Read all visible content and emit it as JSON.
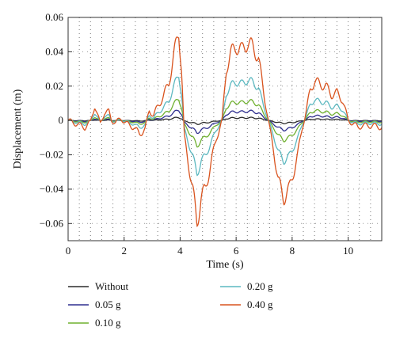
{
  "chart_data": {
    "type": "line",
    "title": "",
    "xlabel": "Time (s)",
    "ylabel": "Displacement (m)",
    "xlim": [
      0,
      11.2
    ],
    "ylim": [
      -0.07,
      0.06
    ],
    "x_ticks": [
      0,
      2,
      4,
      6,
      8,
      10
    ],
    "x_tick_labels": [
      "0",
      "2",
      "4",
      "6",
      "8",
      "10"
    ],
    "y_ticks": [
      0.06,
      0.04,
      0.02,
      0,
      -0.02,
      -0.04,
      -0.06
    ],
    "y_tick_labels": [
      "0.06",
      "0.04",
      "0.02",
      "0",
      "−0.02",
      "−0.04",
      "−0.06"
    ],
    "grid": "dotted",
    "legend_position": "below",
    "base_waveform": {
      "x": [
        0,
        0.3,
        0.6,
        0.8,
        0.95,
        1.05,
        1.15,
        1.3,
        1.45,
        1.55,
        1.7,
        1.9,
        2.1,
        2.35,
        2.55,
        2.75,
        2.9,
        3.05,
        3.2,
        3.4,
        3.6,
        3.8,
        3.95,
        4.05,
        4.15,
        4.3,
        4.45,
        4.6,
        4.75,
        4.9,
        5.1,
        5.3,
        5.5,
        5.65,
        5.8,
        6.0,
        6.2,
        6.4,
        6.6,
        6.8,
        6.95,
        7.1,
        7.2,
        7.35,
        7.5,
        7.7,
        7.9,
        8.05,
        8.2,
        8.35,
        8.5,
        8.65,
        8.8,
        9.0,
        9.2,
        9.4,
        9.6,
        9.8,
        10.0,
        10.2,
        10.35,
        10.5,
        10.7,
        10.9,
        11.2
      ],
      "y": [
        0,
        -0.002,
        -0.004,
        -0.001,
        0.009,
        0.003,
        -0.002,
        0.005,
        0.005,
        0.0,
        -0.001,
        0.001,
        -0.002,
        -0.004,
        -0.008,
        -0.005,
        0.006,
        0.003,
        0.008,
        0.014,
        0.022,
        0.04,
        0.052,
        0.03,
        -0.01,
        -0.025,
        -0.04,
        -0.06,
        -0.045,
        -0.04,
        -0.025,
        -0.01,
        0.0,
        0.03,
        0.039,
        0.043,
        0.041,
        0.045,
        0.043,
        0.036,
        0.02,
        0.005,
        -0.005,
        -0.018,
        -0.035,
        -0.045,
        -0.04,
        -0.03,
        -0.02,
        -0.005,
        0.005,
        0.018,
        0.023,
        0.021,
        0.02,
        0.015,
        0.016,
        0.012,
        0.0,
        -0.002,
        -0.004,
        -0.003,
        -0.003,
        -0.003,
        -0.004
      ]
    },
    "series": [
      {
        "name": "Without",
        "color": "#2b2b2b",
        "scale": 0.035,
        "ripple": 0.0003
      },
      {
        "name": "0.05 g",
        "color": "#2e2e8f",
        "scale": 0.12,
        "ripple": 0.0006
      },
      {
        "name": "0.10 g",
        "color": "#6fb02f",
        "scale": 0.25,
        "ripple": 0.001
      },
      {
        "name": "0.20 g",
        "color": "#5cb8c0",
        "scale": 0.52,
        "ripple": 0.0018
      },
      {
        "name": "0.40 g",
        "color": "#d9531e",
        "scale": 1.0,
        "ripple": 0.0035
      }
    ]
  }
}
